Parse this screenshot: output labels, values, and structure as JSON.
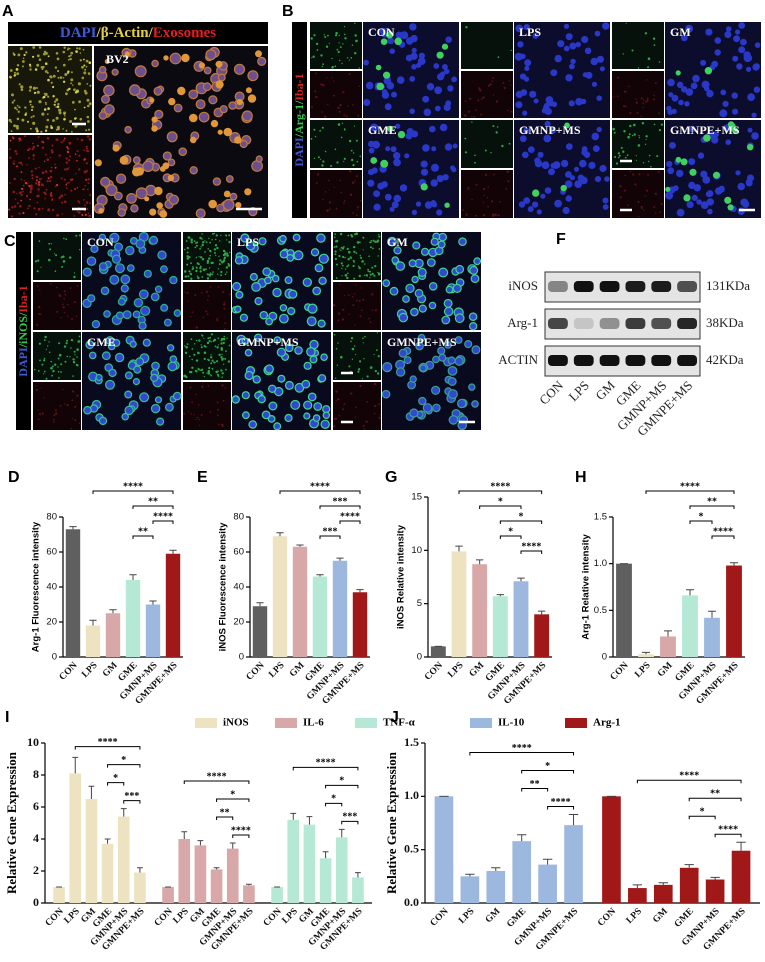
{
  "panels": {
    "A": {
      "label": "A",
      "title_parts": [
        "DAPI",
        "/",
        "β-Actin",
        "/",
        "Exosomes"
      ],
      "cell_line": "BV2"
    },
    "B": {
      "label": "B",
      "stain_parts": [
        "DAPI",
        "/Arg-1/",
        "Iba-1"
      ],
      "groups": [
        "CON",
        "LPS",
        "GM",
        "GME",
        "GMNP+MS",
        "GMNPE+MS"
      ]
    },
    "C": {
      "label": "C",
      "stain_parts": [
        "DAPI",
        "/iNOS/",
        "Iba-1"
      ],
      "groups": [
        "CON",
        "LPS",
        "GM",
        "GME",
        "GMNP+MS",
        "GMNPE+MS"
      ]
    },
    "F": {
      "label": "F",
      "rows": [
        {
          "name": "iNOS",
          "size": "131KDa"
        },
        {
          "name": "Arg-1",
          "size": "38KDa"
        },
        {
          "name": "ACTIN",
          "size": "42KDa"
        }
      ],
      "lanes": [
        "CON",
        "LPS",
        "GM",
        "GME",
        "GMNP+MS",
        "GMNPE+MS"
      ]
    }
  },
  "chart_data": [
    {
      "type": "bar",
      "label": "D",
      "ylabel": "Arg-1 Fluorescence intensity",
      "categories": [
        "CON",
        "LPS",
        "GM",
        "GME",
        "GMNP+MS",
        "GMNPE+MS"
      ],
      "values": [
        73,
        18,
        25,
        44,
        30,
        59
      ],
      "errors": [
        1.5,
        3,
        2,
        3,
        2,
        2
      ],
      "colors": [
        "#5f5f5f",
        "#ede3c0",
        "#d8a8a8",
        "#b5e9d6",
        "#9db8de",
        "#a01818"
      ],
      "ylim": [
        0,
        80
      ],
      "yticks": [
        0,
        20,
        40,
        60,
        80
      ],
      "significance": [
        {
          "from": "LPS",
          "to": "GMNPE+MS",
          "label": "****"
        },
        {
          "from": "GME",
          "to": "GMNPE+MS",
          "label": "**"
        },
        {
          "from": "GMNP+MS",
          "to": "GMNPE+MS",
          "label": "****"
        },
        {
          "from": "GME",
          "to": "GMNP+MS",
          "label": "**"
        }
      ]
    },
    {
      "type": "bar",
      "label": "E",
      "ylabel": "iNOS Fluorescence intensity",
      "categories": [
        "CON",
        "LPS",
        "GM",
        "GME",
        "GMNP+MS",
        "GMNPE+MS"
      ],
      "values": [
        29,
        69,
        63,
        46,
        55,
        37
      ],
      "errors": [
        2,
        2,
        1,
        1,
        1.5,
        1.5
      ],
      "colors": [
        "#5f5f5f",
        "#ede3c0",
        "#d8a8a8",
        "#b5e9d6",
        "#9db8de",
        "#a01818"
      ],
      "ylim": [
        0,
        80
      ],
      "yticks": [
        0,
        20,
        40,
        60,
        80
      ],
      "significance": [
        {
          "from": "LPS",
          "to": "GMNPE+MS",
          "label": "****"
        },
        {
          "from": "GME",
          "to": "GMNPE+MS",
          "label": "***"
        },
        {
          "from": "GMNP+MS",
          "to": "GMNPE+MS",
          "label": "****"
        },
        {
          "from": "GME",
          "to": "GMNP+MS",
          "label": "***"
        }
      ]
    },
    {
      "type": "bar",
      "label": "G",
      "ylabel": "iNOS Relative intensity",
      "categories": [
        "CON",
        "LPS",
        "GM",
        "GME",
        "GMNP+MS",
        "GMNPE+MS"
      ],
      "values": [
        1,
        9.9,
        8.7,
        5.7,
        7.1,
        4.0
      ],
      "errors": [
        0,
        0.5,
        0.4,
        0.15,
        0.3,
        0.3
      ],
      "colors": [
        "#5f5f5f",
        "#ede3c0",
        "#d8a8a8",
        "#b5e9d6",
        "#9db8de",
        "#a01818"
      ],
      "ylim": [
        0,
        15
      ],
      "yticks": [
        0,
        5,
        10,
        15
      ],
      "significance": [
        {
          "from": "LPS",
          "to": "GMNPE+MS",
          "label": "****"
        },
        {
          "from": "GM",
          "to": "GMNP+MS",
          "label": "*"
        },
        {
          "from": "GME",
          "to": "GMNPE+MS",
          "label": "*"
        },
        {
          "from": "GME",
          "to": "GMNP+MS",
          "label": "*"
        },
        {
          "from": "GMNP+MS",
          "to": "GMNPE+MS",
          "label": "****"
        }
      ]
    },
    {
      "type": "bar",
      "label": "H",
      "ylabel": "Arg-1 Relative intensity",
      "categories": [
        "CON",
        "LPS",
        "GM",
        "GME",
        "GMNP+MS",
        "GMNPE+MS"
      ],
      "values": [
        1.0,
        0.03,
        0.22,
        0.66,
        0.42,
        0.98
      ],
      "errors": [
        0,
        0.02,
        0.06,
        0.06,
        0.07,
        0.03
      ],
      "colors": [
        "#5f5f5f",
        "#ede3c0",
        "#d8a8a8",
        "#b5e9d6",
        "#9db8de",
        "#a01818"
      ],
      "ylim": [
        0,
        1.5
      ],
      "yticks": [
        0,
        0.5,
        {
          "value": 1,
          "label": "1.0"
        },
        1.5
      ],
      "significance": [
        {
          "from": "LPS",
          "to": "GMNPE+MS",
          "label": "****"
        },
        {
          "from": "GME",
          "to": "GMNPE+MS",
          "label": "**"
        },
        {
          "from": "GME",
          "to": "GMNP+MS",
          "label": "*"
        },
        {
          "from": "GMNP+MS",
          "to": "GMNPE+MS",
          "label": "****"
        }
      ]
    },
    {
      "type": "bar",
      "label": "I",
      "ylabel": "Relative Gene Expression",
      "categories": [
        "CON",
        "LPS",
        "GM",
        "GME",
        "GMNP+MS",
        "GMNPE+MS"
      ],
      "ylim": [
        0,
        10
      ],
      "yticks": [
        0,
        2,
        4,
        6,
        8,
        10
      ],
      "series": [
        {
          "name": "iNOS",
          "color": "#ede3c0",
          "values": [
            1,
            8.1,
            6.5,
            3.7,
            5.4,
            1.9
          ],
          "errors": [
            0,
            1,
            0.8,
            0.3,
            0.5,
            0.3
          ],
          "significance": [
            {
              "from": "LPS",
              "to": "GMNPE+MS",
              "label": "****"
            },
            {
              "from": "GME",
              "to": "GMNPE+MS",
              "label": "*"
            },
            {
              "from": "GME",
              "to": "GMNP+MS",
              "label": "*"
            },
            {
              "from": "GMNP+MS",
              "to": "GMNPE+MS",
              "label": "***"
            }
          ]
        },
        {
          "name": "IL-6",
          "color": "#d8a8a8",
          "values": [
            1,
            4.0,
            3.6,
            2.1,
            3.4,
            1.1
          ],
          "errors": [
            0,
            0.45,
            0.3,
            0.1,
            0.35,
            0.07
          ],
          "significance": [
            {
              "from": "LPS",
              "to": "GMNPE+MS",
              "label": "****"
            },
            {
              "from": "GME",
              "to": "GMNPE+MS",
              "label": "*"
            },
            {
              "from": "GME",
              "to": "GMNP+MS",
              "label": "**"
            },
            {
              "from": "GMNP+MS",
              "to": "GMNPE+MS",
              "label": "****"
            }
          ]
        },
        {
          "name": "TNF-α",
          "color": "#b5e9d6",
          "values": [
            1,
            5.2,
            4.9,
            2.8,
            4.1,
            1.6
          ],
          "errors": [
            0,
            0.4,
            0.5,
            0.4,
            0.5,
            0.3
          ],
          "significance": [
            {
              "from": "LPS",
              "to": "GMNPE+MS",
              "label": "****"
            },
            {
              "from": "GME",
              "to": "GMNPE+MS",
              "label": "*"
            },
            {
              "from": "GME",
              "to": "GMNP+MS",
              "label": "*"
            },
            {
              "from": "GMNP+MS",
              "to": "GMNPE+MS",
              "label": "***"
            }
          ]
        }
      ]
    },
    {
      "type": "bar",
      "label": "J",
      "ylabel": "Relative Gene Expression",
      "categories": [
        "CON",
        "LPS",
        "GM",
        "GME",
        "GMNP+MS",
        "GMNPE+MS"
      ],
      "ylim": [
        0,
        1.5
      ],
      "yticks": [
        {
          "value": 0,
          "label": "0.0"
        },
        0.5,
        {
          "value": 1,
          "label": "1.0"
        },
        1.5
      ],
      "series": [
        {
          "name": "IL-10",
          "color": "#9db8de",
          "values": [
            1.0,
            0.25,
            0.3,
            0.58,
            0.36,
            0.73
          ],
          "errors": [
            0,
            0.02,
            0.03,
            0.06,
            0.05,
            0.1
          ],
          "significance": [
            {
              "from": "LPS",
              "to": "GMNPE+MS",
              "label": "****"
            },
            {
              "from": "GME",
              "to": "GMNPE+MS",
              "label": "*"
            },
            {
              "from": "GME",
              "to": "GMNP+MS",
              "label": "**"
            },
            {
              "from": "GMNP+MS",
              "to": "GMNPE+MS",
              "label": "****"
            }
          ]
        },
        {
          "name": "Arg-1",
          "color": "#a01818",
          "values": [
            1.0,
            0.14,
            0.17,
            0.33,
            0.22,
            0.49
          ],
          "errors": [
            0,
            0.03,
            0.02,
            0.03,
            0.02,
            0.08
          ],
          "significance": [
            {
              "from": "LPS",
              "to": "GMNPE+MS",
              "label": "****"
            },
            {
              "from": "GME",
              "to": "GMNPE+MS",
              "label": "**"
            },
            {
              "from": "GME",
              "to": "GMNP+MS",
              "label": "*"
            },
            {
              "from": "GMNP+MS",
              "to": "GMNPE+MS",
              "label": "****"
            }
          ]
        }
      ]
    }
  ]
}
